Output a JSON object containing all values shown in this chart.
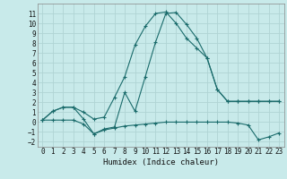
{
  "bg_color": "#c8eaea",
  "grid_color": "#b0d4d4",
  "line_color": "#1a6b6b",
  "xlabel": "Humidex (Indice chaleur)",
  "ylim": [
    -2.5,
    12.0
  ],
  "xlim": [
    -0.5,
    23.5
  ],
  "yticks": [
    -2,
    -1,
    0,
    1,
    2,
    3,
    4,
    5,
    6,
    7,
    8,
    9,
    10,
    11
  ],
  "xticks": [
    0,
    1,
    2,
    3,
    4,
    5,
    6,
    7,
    8,
    9,
    10,
    11,
    12,
    13,
    14,
    15,
    16,
    17,
    18,
    19,
    20,
    21,
    22,
    23
  ],
  "series": [
    {
      "x": [
        0,
        1,
        2,
        3,
        4,
        5,
        6,
        7,
        8,
        9,
        10,
        11,
        12,
        13,
        14,
        15,
        16,
        17,
        18,
        19,
        20,
        21,
        22,
        23
      ],
      "y": [
        0.2,
        1.1,
        1.5,
        1.5,
        1.0,
        0.3,
        0.5,
        2.5,
        4.6,
        7.8,
        9.7,
        11.0,
        11.15,
        10.0,
        8.5,
        7.5,
        6.5,
        3.3,
        2.1,
        2.1,
        2.1,
        2.1,
        2.1,
        2.1
      ]
    },
    {
      "x": [
        0,
        1,
        2,
        3,
        4,
        5,
        6,
        7,
        8,
        9,
        10,
        11,
        12,
        13,
        14,
        15,
        16,
        17,
        18,
        19,
        20,
        21,
        22,
        23
      ],
      "y": [
        0.2,
        1.1,
        1.5,
        1.5,
        0.3,
        -1.2,
        -0.7,
        -0.5,
        3.0,
        1.1,
        4.6,
        8.1,
        11.0,
        11.1,
        9.9,
        8.5,
        6.5,
        3.3,
        2.1,
        2.1,
        2.1,
        2.1,
        2.1,
        2.1
      ]
    },
    {
      "x": [
        0,
        1,
        2,
        3,
        4,
        5,
        6,
        7,
        8,
        9,
        10,
        11,
        12,
        13,
        14,
        15,
        16,
        17,
        18,
        19,
        20,
        21,
        22,
        23
      ],
      "y": [
        0.2,
        0.2,
        0.2,
        0.2,
        -0.2,
        -1.2,
        -0.8,
        -0.6,
        -0.4,
        -0.3,
        -0.2,
        -0.1,
        0.0,
        0.0,
        0.0,
        0.0,
        0.0,
        0.0,
        0.0,
        -0.1,
        -0.3,
        -1.8,
        -1.5,
        -1.1
      ]
    }
  ]
}
